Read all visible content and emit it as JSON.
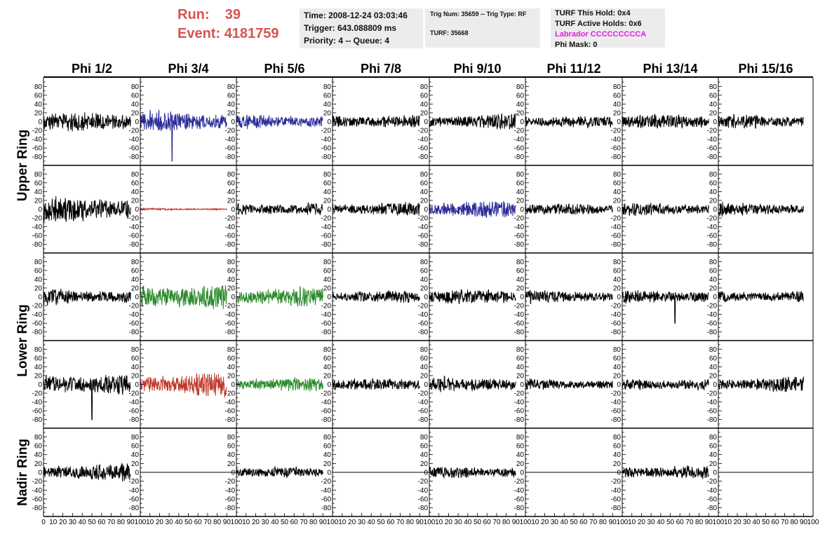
{
  "header": {
    "run_label": "Run:",
    "run_value": "39",
    "event_label": "Event:",
    "event_value": "4181759",
    "time": "Time: 2008-12-24 03:03:46",
    "trigger": "Trigger: 643.088809 ms",
    "priority": "Priority: 4 -- Queue: 4",
    "trig_num": "Trig Num: 35659 -- Trig Type: RF",
    "turf": "TURF: 35668",
    "turf_this_hold": "TURF This Hold: 0x4",
    "turf_active_holds": "TURF Active Holds: 0x6",
    "labrador": "Labrador CCCCCCCCCA",
    "phi_mask": "Phi Mask: 0",
    "labrador_color": "#e020e0",
    "run_color": "#d9534f"
  },
  "chart_data": {
    "type": "line",
    "description": "Grid of 40 waveform panels (5 rings x 8 phi-sector columns); y in mV-like units, x in sample/time units",
    "columns": [
      "Phi 1/2",
      "Phi 3/4",
      "Phi 5/6",
      "Phi 7/8",
      "Phi 9/10",
      "Phi 11/12",
      "Phi 13/14",
      "Phi 15/16"
    ],
    "ring_labels": [
      {
        "label": "Upper Ring",
        "rows": [
          0,
          1
        ]
      },
      {
        "label": "Lower Ring",
        "rows": [
          2,
          3
        ]
      },
      {
        "label": "Nadir Ring",
        "rows": [
          4
        ]
      }
    ],
    "ylim": [
      -90,
      90
    ],
    "yticks": [
      -80,
      -60,
      -40,
      -20,
      0,
      20,
      40,
      60,
      80
    ],
    "xlim": [
      0,
      100
    ],
    "xticks": [
      0,
      10,
      20,
      30,
      40,
      50,
      60,
      70,
      80,
      90,
      100
    ],
    "colors": {
      "normal": "#000000",
      "blue": "#2b2b9a",
      "red": "#c0392b",
      "green": "#2b8a2b"
    },
    "panels": [
      [
        {
          "color": "normal",
          "amp": 28,
          "x1": 0,
          "x2": 90
        },
        {
          "color": "blue",
          "amp": 30,
          "x1": 0,
          "x2": 90,
          "spike": {
            "x": 33,
            "y": -90
          }
        },
        {
          "color": "blue",
          "amp": 22,
          "x1": 0,
          "x2": 90
        },
        {
          "color": "normal",
          "amp": 22,
          "x1": 0,
          "x2": 90
        },
        {
          "color": "normal",
          "amp": 22,
          "x1": 0,
          "x2": 90
        },
        {
          "color": "normal",
          "amp": 17,
          "x1": 0,
          "x2": 90
        },
        {
          "color": "normal",
          "amp": 20,
          "x1": 0,
          "x2": 90
        },
        {
          "color": "normal",
          "amp": 20,
          "x1": 0,
          "x2": 90
        }
      ],
      [
        {
          "color": "normal",
          "amp": 35,
          "x1": 0,
          "x2": 90
        },
        {
          "color": "red",
          "amp": 3,
          "x1": 0,
          "x2": 90
        },
        {
          "color": "normal",
          "amp": 20,
          "x1": 0,
          "x2": 90
        },
        {
          "color": "normal",
          "amp": 20,
          "x1": 0,
          "x2": 90
        },
        {
          "color": "blue",
          "amp": 25,
          "x1": 0,
          "x2": 90
        },
        {
          "color": "normal",
          "amp": 16,
          "x1": 0,
          "x2": 90
        },
        {
          "color": "normal",
          "amp": 18,
          "x1": 0,
          "x2": 90
        },
        {
          "color": "normal",
          "amp": 20,
          "x1": 0,
          "x2": 90
        }
      ],
      [
        {
          "color": "normal",
          "amp": 24,
          "x1": 0,
          "x2": 90
        },
        {
          "color": "green",
          "amp": 42,
          "x1": 0,
          "x2": 90
        },
        {
          "color": "green",
          "amp": 28,
          "x1": 0,
          "x2": 90
        },
        {
          "color": "normal",
          "amp": 17,
          "x1": 0,
          "x2": 90
        },
        {
          "color": "normal",
          "amp": 20,
          "x1": 0,
          "x2": 90
        },
        {
          "color": "normal",
          "amp": 18,
          "x1": 0,
          "x2": 90
        },
        {
          "color": "normal",
          "amp": 20,
          "x1": 0,
          "x2": 90,
          "spike": {
            "x": 55,
            "y": -60
          }
        },
        {
          "color": "normal",
          "amp": 17,
          "x1": 0,
          "x2": 90
        }
      ],
      [
        {
          "color": "normal",
          "amp": 35,
          "x1": 0,
          "x2": 90,
          "spike": {
            "x": 50,
            "y": -80
          }
        },
        {
          "color": "red",
          "amp": 35,
          "x1": 0,
          "x2": 90
        },
        {
          "color": "green",
          "amp": 20,
          "x1": 0,
          "x2": 90
        },
        {
          "color": "normal",
          "amp": 17,
          "x1": 0,
          "x2": 90
        },
        {
          "color": "normal",
          "amp": 22,
          "x1": 0,
          "x2": 90
        },
        {
          "color": "normal",
          "amp": 17,
          "x1": 0,
          "x2": 90
        },
        {
          "color": "normal",
          "amp": 19,
          "x1": 0,
          "x2": 90
        },
        {
          "color": "normal",
          "amp": 22,
          "x1": 0,
          "x2": 90
        }
      ],
      [
        {
          "color": "normal",
          "amp": 25,
          "x1": 0,
          "x2": 90
        },
        {
          "color": "normal",
          "amp": 0,
          "x1": 0,
          "x2": 100
        },
        {
          "color": "normal",
          "amp": 15,
          "x1": 0,
          "x2": 90
        },
        {
          "color": "normal",
          "amp": 0,
          "x1": 0,
          "x2": 100
        },
        {
          "color": "normal",
          "amp": 18,
          "x1": 0,
          "x2": 90
        },
        {
          "color": "normal",
          "amp": 0,
          "x1": 0,
          "x2": 100
        },
        {
          "color": "normal",
          "amp": 20,
          "x1": 0,
          "x2": 90
        },
        {
          "color": "normal",
          "amp": 0,
          "x1": 0,
          "x2": 100
        }
      ]
    ]
  }
}
